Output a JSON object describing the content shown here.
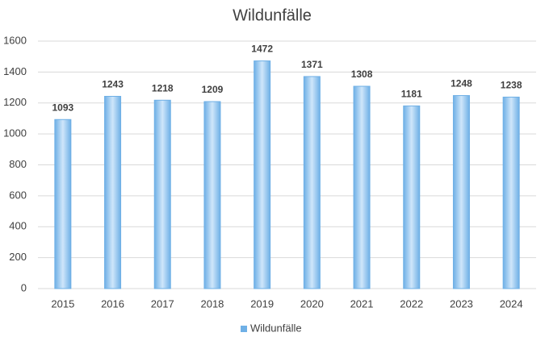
{
  "chart_data": {
    "type": "bar",
    "title": "Wildunfälle",
    "categories": [
      "2015",
      "2016",
      "2017",
      "2018",
      "2019",
      "2020",
      "2021",
      "2022",
      "2023",
      "2024"
    ],
    "series": [
      {
        "name": "Wildunfälle",
        "color": "#6fb0e6",
        "values": [
          1093,
          1243,
          1218,
          1209,
          1472,
          1371,
          1308,
          1181,
          1248,
          1238
        ]
      }
    ],
    "ylim": [
      0,
      1600
    ],
    "yticks": [
      0,
      200,
      400,
      600,
      800,
      1000,
      1200,
      1400,
      1600
    ],
    "grid": true,
    "legend": "bottom"
  }
}
